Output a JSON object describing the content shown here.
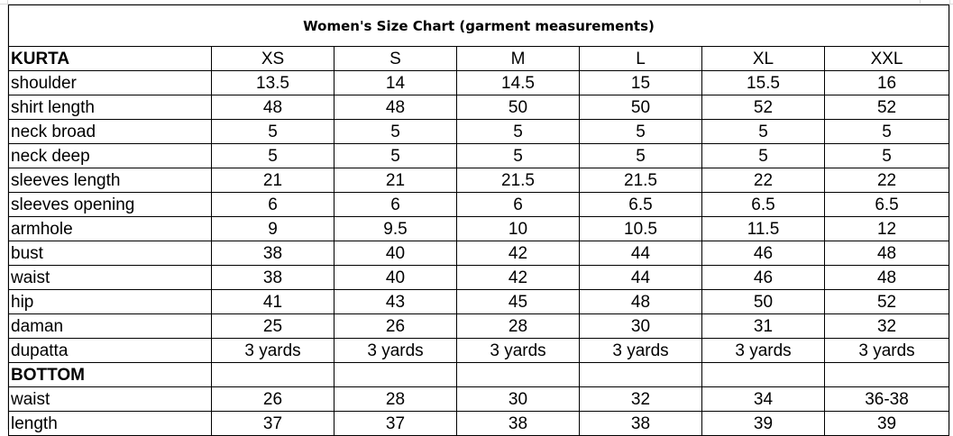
{
  "title": "Women's Size Chart (garment measurements)",
  "sizes": [
    "XS",
    "S",
    "M",
    "L",
    "XL",
    "XXL"
  ],
  "kurta": {
    "heading": "KURTA",
    "rows": [
      {
        "label": "shoulder",
        "values": [
          "13.5",
          "14",
          "14.5",
          "15",
          "15.5",
          "16"
        ]
      },
      {
        "label": "shirt length",
        "values": [
          "48",
          "48",
          "50",
          "50",
          "52",
          "52"
        ]
      },
      {
        "label": "neck broad",
        "values": [
          "5",
          "5",
          "5",
          "5",
          "5",
          "5"
        ]
      },
      {
        "label": "neck deep",
        "values": [
          "5",
          "5",
          "5",
          "5",
          "5",
          "5"
        ]
      },
      {
        "label": "sleeves length",
        "values": [
          "21",
          "21",
          "21.5",
          "21.5",
          "22",
          "22"
        ]
      },
      {
        "label": "sleeves opening",
        "values": [
          "6",
          "6",
          "6",
          "6.5",
          "6.5",
          "6.5"
        ]
      },
      {
        "label": "armhole",
        "values": [
          "9",
          "9.5",
          "10",
          "10.5",
          "11.5",
          "12"
        ]
      },
      {
        "label": "bust",
        "values": [
          "38",
          "40",
          "42",
          "44",
          "46",
          "48"
        ]
      },
      {
        "label": "waist",
        "values": [
          "38",
          "40",
          "42",
          "44",
          "46",
          "48"
        ]
      },
      {
        "label": "hip",
        "values": [
          "41",
          "43",
          "45",
          "48",
          "50",
          "52"
        ]
      },
      {
        "label": "daman",
        "values": [
          "25",
          "26",
          "28",
          "30",
          "31",
          "32"
        ]
      },
      {
        "label": "dupatta",
        "values": [
          "3 yards",
          "3 yards",
          "3 yards",
          "3 yards",
          "3 yards",
          "3 yards"
        ]
      }
    ]
  },
  "bottom": {
    "heading": "BOTTOM",
    "rows": [
      {
        "label": "waist",
        "values": [
          "26",
          "28",
          "30",
          "32",
          "34",
          "36-38"
        ]
      },
      {
        "label": "length",
        "values": [
          "37",
          "37",
          "38",
          "38",
          "39",
          "39"
        ]
      }
    ]
  }
}
